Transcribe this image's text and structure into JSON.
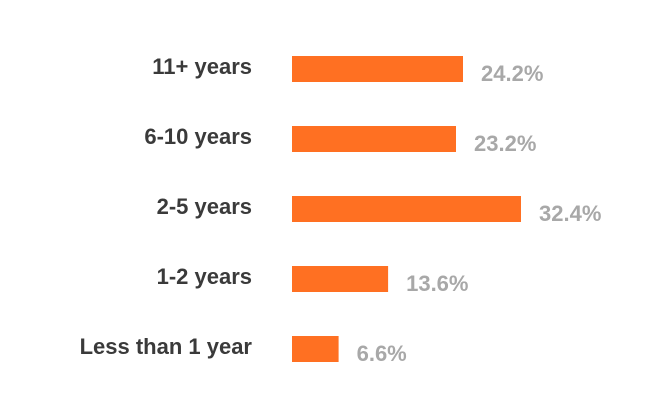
{
  "chart_data": {
    "type": "bar",
    "orientation": "horizontal",
    "categories": [
      "11+ years",
      "6-10 years",
      "2-5 years",
      "1-2 years",
      "Less than 1 year"
    ],
    "values": [
      24.2,
      23.2,
      32.4,
      13.6,
      6.6
    ],
    "value_labels": [
      "24.2%",
      "23.2%",
      "32.4%",
      "13.6%",
      "6.6%"
    ],
    "unit": "%",
    "title": "",
    "xlabel": "",
    "ylabel": "",
    "xlim": [
      0,
      32.4
    ],
    "grid": false,
    "legend": "none",
    "colors": {
      "bar": "#ff7022",
      "category_text": "#3a3a3a",
      "value_text": "#a8a8a8",
      "background": "#ffffff"
    }
  }
}
